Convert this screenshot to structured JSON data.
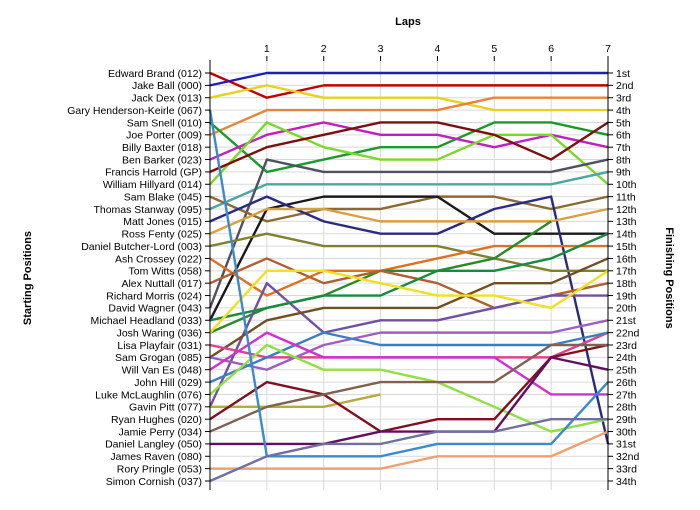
{
  "chart_data": {
    "type": "line",
    "title": "",
    "xlabel": "Laps",
    "ylabel_left": "Starting Positions",
    "ylabel_right": "Finishing Positions",
    "x": [
      0,
      1,
      2,
      3,
      4,
      5,
      6,
      7
    ],
    "x_tick_labels": [
      "1",
      "2",
      "3",
      "4",
      "5",
      "6",
      "7"
    ],
    "starting_labels": [
      "Edward Brand (012)",
      "Jake Ball (000)",
      "Jack Dex (013)",
      "Gary Henderson-Keirle (067)",
      "Sam Snell (010)",
      "Joe Porter (009)",
      "Billy Baxter (018)",
      "Ben Barker (023)",
      "Francis Harrold (GP)",
      "William Hillyard (014)",
      "Sam Blake (045)",
      "Thomas Stanway (095)",
      "Matt Jones (015)",
      "Ross Fenty (025)",
      "Daniel Butcher-Lord (003)",
      "Ash Crossey (022)",
      "Tom Witts (058)",
      "Alex Nuttall (017)",
      "Richard Morris (024)",
      "David Wagner (043)",
      "Michael Headland (033)",
      "Josh Waring (036)",
      "Lisa Playfair (031)",
      "Sam Grogan (085)",
      "Will Van Es (048)",
      "John Hill (029)",
      "Luke McLaughlin (076)",
      "Gavin Pitt (077)",
      "Ryan Hughes (020)",
      "Jamie Perry (034)",
      "Daniel Langley (050)",
      "James Raven (080)",
      "Rory Pringle (053)",
      "Simon Cornish (037)"
    ],
    "finishing_labels": [
      "1st",
      "2nd",
      "3rd",
      "4th",
      "5th",
      "6th",
      "7th",
      "8th",
      "9th",
      "10th",
      "11th",
      "12th",
      "13th",
      "14th",
      "15th",
      "16th",
      "17th",
      "18th",
      "19th",
      "20th",
      "21st",
      "22nd",
      "23rd",
      "24th",
      "25th",
      "26th",
      "27th",
      "28th",
      "29th",
      "30th",
      "31st",
      "32nd",
      "33rd",
      "34th"
    ],
    "ylim": [
      1,
      34
    ],
    "grid": true,
    "series": [
      {
        "color": "#c00000",
        "positions": [
          1,
          3,
          2,
          2,
          2,
          2,
          2,
          2
        ]
      },
      {
        "color": "#1f1fb4",
        "positions": [
          2,
          1,
          1,
          1,
          1,
          1,
          1,
          1
        ]
      },
      {
        "color": "#e6d21e",
        "positions": [
          3,
          2,
          3,
          3,
          3,
          4,
          4,
          4
        ]
      },
      {
        "color": "#e8843a",
        "positions": [
          6,
          4,
          4,
          4,
          4,
          3,
          3,
          3
        ]
      },
      {
        "color": "#1a9a2a",
        "positions": [
          5,
          9,
          8,
          7,
          7,
          5,
          5,
          6
        ]
      },
      {
        "color": "#c020c0",
        "positions": [
          8,
          6,
          5,
          6,
          6,
          7,
          6,
          7
        ]
      },
      {
        "color": "#7cd828",
        "positions": [
          10,
          5,
          7,
          8,
          8,
          6,
          6,
          10
        ]
      },
      {
        "color": "#7a1010",
        "positions": [
          9,
          7,
          6,
          5,
          5,
          6,
          8,
          5
        ]
      },
      {
        "color": "#4aa8a0",
        "positions": [
          12,
          10,
          10,
          10,
          10,
          10,
          10,
          9
        ]
      },
      {
        "color": "#505060",
        "positions": [
          20,
          8,
          9,
          9,
          9,
          9,
          9,
          8
        ]
      },
      {
        "color": "#8a6a30",
        "positions": [
          11,
          13,
          12,
          12,
          11,
          11,
          12,
          11
        ]
      },
      {
        "color": "#1a1a1a",
        "positions": [
          21,
          12,
          11,
          11,
          11,
          14,
          14,
          14
        ]
      },
      {
        "color": "#2a2a80",
        "positions": [
          13,
          11,
          13,
          14,
          14,
          12,
          11,
          31
        ]
      },
      {
        "color": "#d8a040",
        "positions": [
          14,
          12,
          12,
          13,
          13,
          13,
          13,
          12
        ]
      },
      {
        "color": "#808030",
        "positions": [
          15,
          14,
          15,
          15,
          15,
          16,
          17,
          17
        ]
      },
      {
        "color": "#e07020",
        "positions": [
          16,
          19,
          17,
          17,
          16,
          15,
          15,
          15
        ]
      },
      {
        "color": "#2a8a2a",
        "positions": [
          22,
          20,
          19,
          17,
          17,
          16,
          13
        ]
      },
      {
        "color": "#b06030",
        "positions": [
          18,
          16,
          18,
          17,
          18,
          20,
          19,
          18
        ]
      },
      {
        "color": "#7050a0",
        "positions": [
          28,
          18,
          22,
          21,
          21,
          20,
          19,
          19
        ]
      },
      {
        "color": "#1a8a40",
        "positions": [
          21,
          20,
          19,
          19,
          17,
          17,
          16,
          14
        ]
      },
      {
        "color": "#705020",
        "positions": [
          24,
          21,
          20,
          20,
          20,
          18,
          18,
          16
        ]
      },
      {
        "color": "#f0e020",
        "positions": [
          22,
          17,
          17,
          18,
          19,
          19,
          20,
          17
        ]
      },
      {
        "color": "#e04090",
        "positions": [
          23,
          24,
          24,
          24,
          24,
          24,
          24,
          22
        ]
      },
      {
        "color": "#9a60c0",
        "positions": [
          24,
          25,
          23,
          22,
          22,
          22,
          22,
          21
        ]
      },
      {
        "color": "#3a80c0",
        "positions": [
          26,
          24,
          22,
          23,
          23,
          23,
          23,
          22
        ]
      },
      {
        "color": "#d030d0",
        "positions": [
          25,
          22,
          24,
          24,
          24,
          24,
          27,
          27
        ]
      },
      {
        "color": "#90e040",
        "positions": [
          27,
          23,
          25,
          25,
          26,
          28,
          30,
          29
        ]
      },
      {
        "color": "#b8a840",
        "positions": [
          28,
          28,
          28,
          27
        ]
      },
      {
        "color": "#801020",
        "positions": [
          29,
          26,
          27,
          30,
          29,
          29,
          24,
          23
        ]
      },
      {
        "color": "#806050",
        "positions": [
          30,
          28,
          27,
          26,
          26,
          26,
          23,
          23
        ]
      },
      {
        "color": "#601060",
        "positions": [
          31,
          31,
          31,
          30,
          30,
          30,
          24,
          25
        ]
      },
      {
        "color": "#3a8ad0",
        "positions": [
          4,
          32,
          32,
          32,
          31,
          31,
          31,
          26
        ]
      },
      {
        "color": "#f0a070",
        "positions": [
          33,
          33,
          33,
          33,
          32,
          32,
          32,
          30
        ]
      },
      {
        "color": "#7070a0",
        "positions": [
          34,
          32,
          31,
          31,
          30,
          30,
          29,
          29
        ]
      }
    ]
  }
}
